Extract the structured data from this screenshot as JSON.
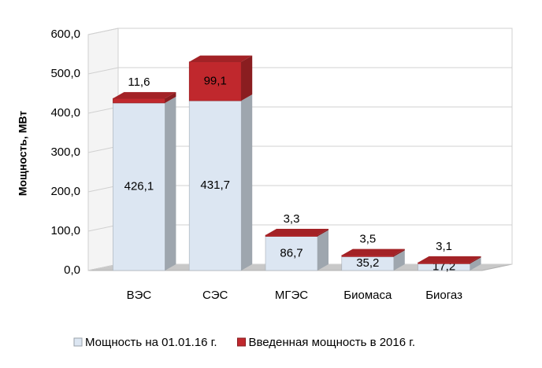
{
  "chart_data": {
    "type": "bar3d",
    "stacked": true,
    "y_label": "Мощность, МВт",
    "categories": [
      "ВЭС",
      "СЭС",
      "МГЭС",
      "Биомаса",
      "Биогаз"
    ],
    "series": [
      {
        "name": "Мощность на 01.01.16 г.",
        "color": "#dce6f2",
        "values": [
          426.1,
          431.7,
          86.7,
          35.2,
          17.2
        ],
        "value_labels": [
          "426,1",
          "431,7",
          "86,7",
          "35,2",
          "17,2"
        ]
      },
      {
        "name": "Введенная мощность в 2016 г.",
        "color": "#c0282d",
        "values": [
          11.6,
          99.1,
          3.3,
          3.5,
          3.1
        ],
        "value_labels": [
          "11,6",
          "99,1",
          "3,3",
          "3,5",
          "3,1"
        ]
      }
    ],
    "ylim": [
      0,
      600
    ],
    "yticks": [
      {
        "value": 0,
        "label": "0,0"
      },
      {
        "value": 100,
        "label": "100,0"
      },
      {
        "value": 200,
        "label": "200,0"
      },
      {
        "value": 300,
        "label": "300,0"
      },
      {
        "value": 400,
        "label": "400,0"
      },
      {
        "value": 500,
        "label": "500,0"
      },
      {
        "value": 600,
        "label": "600,0"
      }
    ],
    "grid": true,
    "legend": "bottom"
  }
}
